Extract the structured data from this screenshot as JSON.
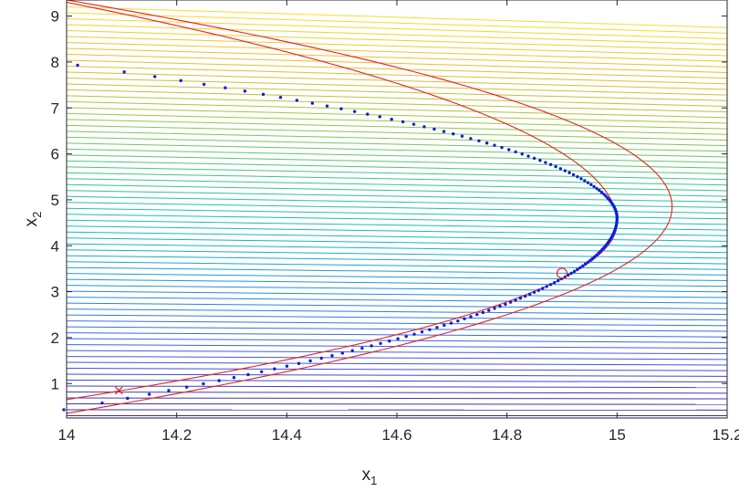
{
  "chart_data": {
    "type": "line",
    "title": "",
    "xlabel": "x",
    "xlabel_sub": "1",
    "ylabel": "x",
    "ylabel_sub": "2",
    "xlim": [
      14,
      15.2
    ],
    "ylim": [
      0.25,
      9.35
    ],
    "xticks": [
      "14",
      "14.2",
      "14.4",
      "14.6",
      "14.8",
      "15",
      "15.2"
    ],
    "yticks": [
      "1",
      "2",
      "3",
      "4",
      "5",
      "6",
      "7",
      "8",
      "9"
    ],
    "grid": false,
    "legend": "none",
    "contour_lines": {
      "count": 70,
      "y_left_range": [
        0.3,
        9.2
      ],
      "y_right_range": [
        0.3,
        8.75
      ],
      "x_range": [
        14.0,
        15.2
      ],
      "colormap": "parula (dark blue at bottom to yellow at top)"
    },
    "series": [
      {
        "kind": "parabola-curve",
        "color": "#e8211a",
        "vertex": [
          15.0,
          4.5
        ],
        "ends": [
          [
            14.0,
            0.65
          ],
          [
            14.0,
            9.3
          ]
        ]
      },
      {
        "kind": "parabola-curve",
        "color": "#e8211a",
        "vertex": [
          15.1,
          4.85
        ],
        "ends": [
          [
            14.0,
            0.35
          ],
          [
            14.0,
            9.35
          ]
        ]
      },
      {
        "kind": "dotted-path",
        "color": "#0a1fe0",
        "vertex": [
          15.0,
          4.6
        ],
        "ends": [
          [
            13.995,
            0.43
          ],
          [
            14.02,
            7.93
          ]
        ]
      }
    ],
    "markers": [
      {
        "type": "cross",
        "x": 14.095,
        "y": 0.85,
        "color": "#e8211a"
      },
      {
        "type": "circle",
        "x": 14.9,
        "y": 3.4,
        "color": "#e8211a"
      }
    ]
  }
}
